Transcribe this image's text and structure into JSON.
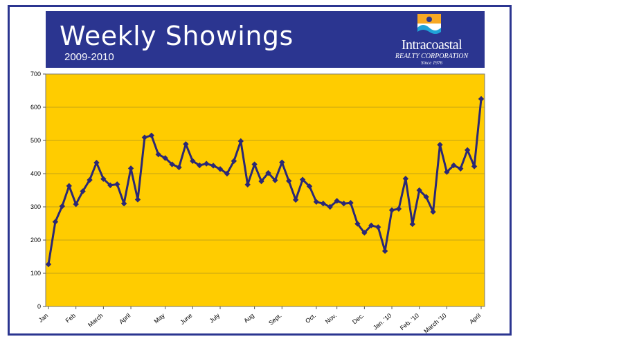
{
  "header": {
    "title": "Weekly Showings",
    "subtitle": "2009-2010"
  },
  "logo": {
    "name": "Intracoastal",
    "corporation": "REALTY CORPORATION",
    "since": "Since 1976"
  },
  "colors": {
    "banner": "#2b3590",
    "plot_background": "#ffcc00",
    "line": "#2b2875"
  },
  "chart_data": {
    "type": "line",
    "title": "Weekly Showings",
    "subtitle": "2009-2010",
    "xlabel": "",
    "ylabel": "",
    "ylim": [
      0,
      700
    ],
    "yticks": [
      0,
      100,
      200,
      300,
      400,
      500,
      600,
      700
    ],
    "grid": true,
    "legend": "none",
    "month_labels": [
      {
        "label": "Jan",
        "week": 0
      },
      {
        "label": "Feb",
        "week": 4
      },
      {
        "label": "March",
        "week": 8
      },
      {
        "label": "April",
        "week": 12
      },
      {
        "label": "May",
        "week": 17
      },
      {
        "label": "June",
        "week": 21
      },
      {
        "label": "July",
        "week": 25
      },
      {
        "label": "Aug",
        "week": 30
      },
      {
        "label": "Sept.",
        "week": 34
      },
      {
        "label": "Oct.",
        "week": 39
      },
      {
        "label": "Nov.",
        "week": 42
      },
      {
        "label": "Dec.",
        "week": 46
      },
      {
        "label": "Jan. '10",
        "week": 50
      },
      {
        "label": "Feb. '10",
        "week": 54
      },
      {
        "label": "March '10",
        "week": 58
      },
      {
        "label": "April",
        "week": 63
      }
    ],
    "series": [
      {
        "values": [
          127,
          255,
          302,
          363,
          308,
          347,
          381,
          433,
          384,
          365,
          368,
          310,
          416,
          322,
          509,
          515,
          458,
          447,
          428,
          419,
          489,
          438,
          425,
          430,
          424,
          414,
          400,
          438,
          498,
          367,
          428,
          377,
          402,
          380,
          434,
          378,
          321,
          382,
          362,
          315,
          310,
          300,
          318,
          310,
          312,
          249,
          222,
          244,
          239,
          167,
          290,
          294,
          385,
          248,
          350,
          330,
          285,
          487,
          405,
          425,
          415,
          471,
          422,
          625
        ]
      }
    ]
  }
}
